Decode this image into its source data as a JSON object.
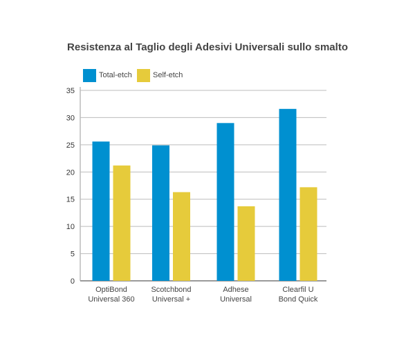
{
  "chart_data": {
    "type": "bar",
    "title": "Resistenza al Taglio degli Adesivi Universali sullo smalto",
    "categories": [
      [
        "OptiBond",
        "Universal 360"
      ],
      [
        "Scotchbond",
        "Universal +"
      ],
      [
        "Adhese",
        "Universal"
      ],
      [
        "Clearfil U",
        "Bond Quick"
      ]
    ],
    "series": [
      {
        "name": "Total-etch",
        "color": "#0090d0",
        "values": [
          25.6,
          24.9,
          29.0,
          31.6
        ]
      },
      {
        "name": "Self-etch",
        "color": "#e6cb3b",
        "values": [
          21.2,
          16.3,
          13.7,
          17.2
        ]
      }
    ],
    "ylim": [
      0,
      35
    ],
    "yticks": [
      0,
      5,
      10,
      15,
      20,
      25,
      30,
      35
    ],
    "grid": true,
    "legend": "top-left"
  }
}
